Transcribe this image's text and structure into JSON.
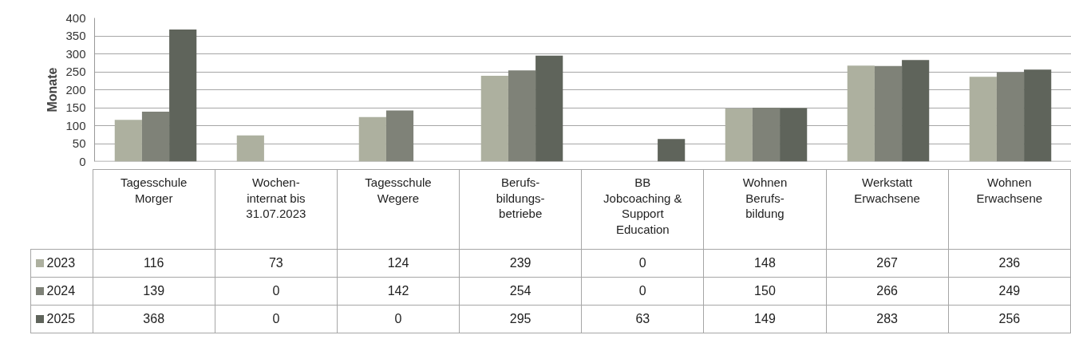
{
  "chart_data": {
    "type": "bar",
    "ylabel": "Monate",
    "categories": [
      "Tagesschule\nMorger",
      "Wochen-\ninternat bis\n31.07.2023",
      "Tagesschule\nWegere",
      "Berufs-\nbildungs-\nbetriebe",
      "BB\nJobcoaching &\nSupport\nEducation",
      "Wohnen\nBerufs-\nbildung",
      "Werkstatt\nErwachsene",
      "Wohnen\nErwachsene"
    ],
    "series": [
      {
        "name": "2023",
        "color": "#adb09f",
        "values": [
          116,
          73,
          124,
          239,
          0,
          148,
          267,
          236
        ]
      },
      {
        "name": "2024",
        "color": "#7f8278",
        "values": [
          139,
          0,
          142,
          254,
          0,
          150,
          266,
          249
        ]
      },
      {
        "name": "2025",
        "color": "#5f645b",
        "values": [
          368,
          0,
          0,
          295,
          63,
          149,
          283,
          256
        ]
      }
    ],
    "ylim": [
      0,
      400
    ],
    "yticks": [
      0,
      50,
      100,
      150,
      200,
      250,
      300,
      350,
      400
    ],
    "grid": "y",
    "legend": "bottom",
    "data_labels": true
  }
}
